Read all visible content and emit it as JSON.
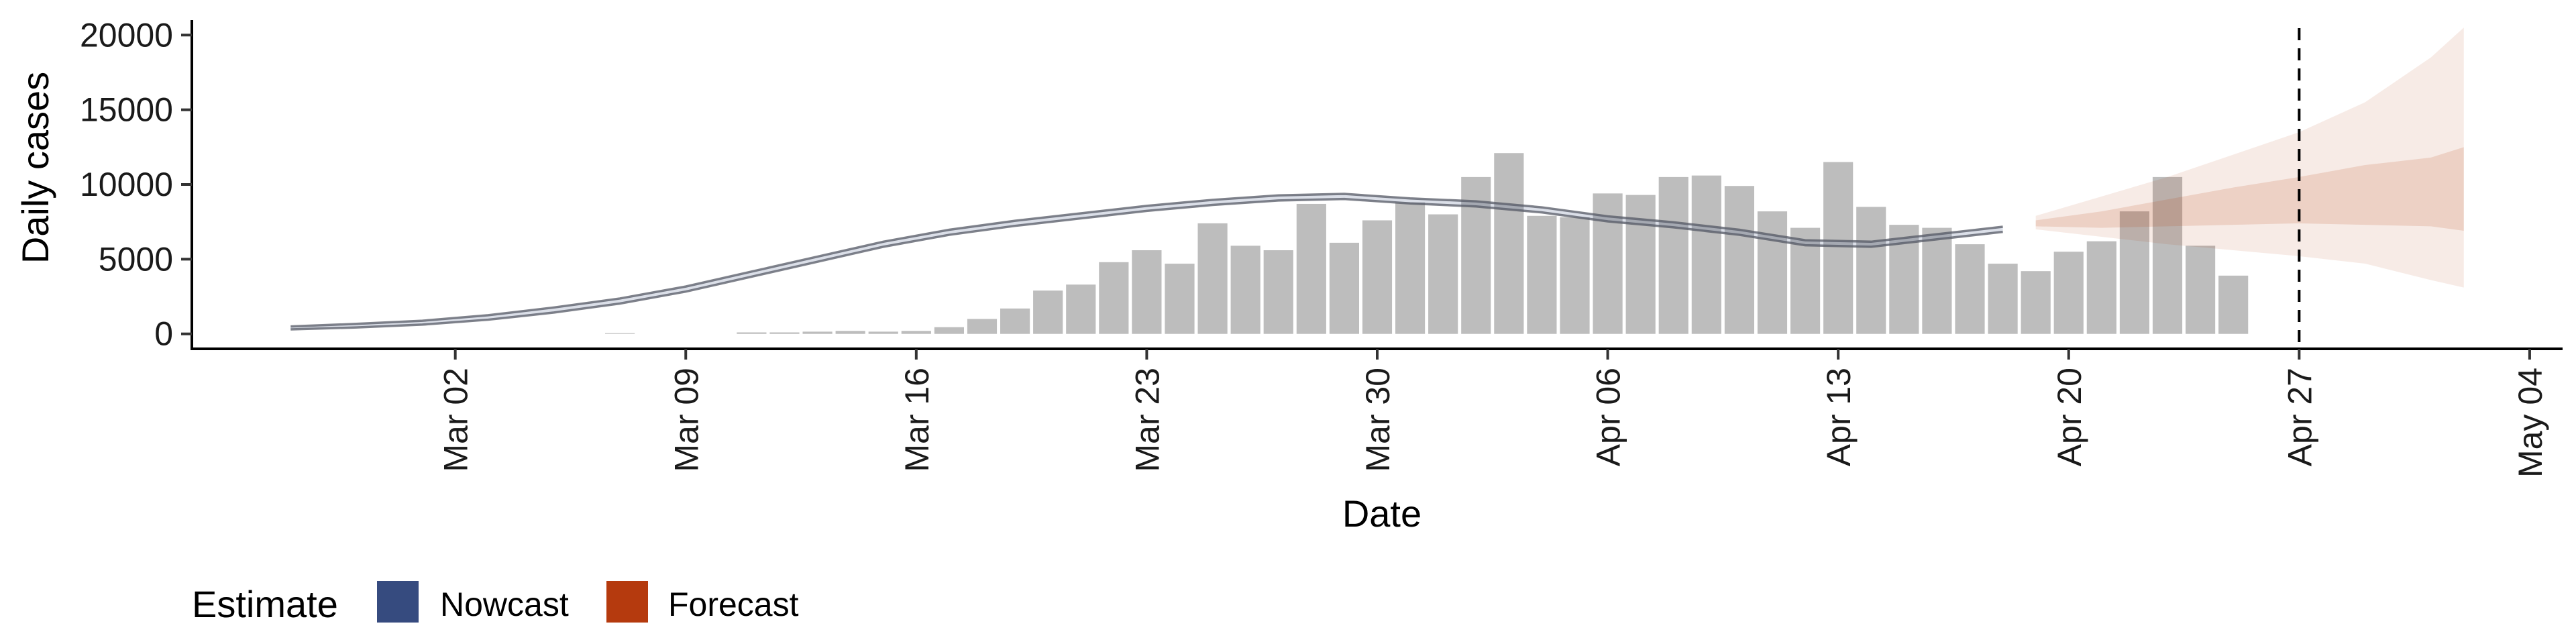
{
  "chart_data": {
    "type": "bar",
    "xlabel": "Date",
    "ylabel": "Daily cases",
    "ylim": [
      -1000,
      21000
    ],
    "y_ticks": [
      0,
      5000,
      10000,
      15000,
      20000
    ],
    "y_tick_labels": [
      "0",
      "5000",
      "10000",
      "15000",
      "20000"
    ],
    "x_ticks": [
      "2020-03-02",
      "2020-03-09",
      "2020-03-16",
      "2020-03-23",
      "2020-03-30",
      "2020-04-06",
      "2020-04-13",
      "2020-04-20",
      "2020-04-27",
      "2020-05-04"
    ],
    "x_tick_labels": [
      "Mar 02",
      "Mar 09",
      "Mar 16",
      "Mar 23",
      "Mar 30",
      "Apr 06",
      "Apr 13",
      "Apr 20",
      "Apr 27",
      "May 04"
    ],
    "xlim": [
      "2020-02-23",
      "2020-05-05"
    ],
    "vline_date": "2020-04-27",
    "bars": {
      "dates": [
        "2020-03-06",
        "2020-03-07",
        "2020-03-08",
        "2020-03-09",
        "2020-03-10",
        "2020-03-11",
        "2020-03-12",
        "2020-03-13",
        "2020-03-14",
        "2020-03-15",
        "2020-03-16",
        "2020-03-17",
        "2020-03-18",
        "2020-03-19",
        "2020-03-20",
        "2020-03-21",
        "2020-03-22",
        "2020-03-23",
        "2020-03-24",
        "2020-03-25",
        "2020-03-26",
        "2020-03-27",
        "2020-03-28",
        "2020-03-29",
        "2020-03-30",
        "2020-03-31",
        "2020-04-01",
        "2020-04-02",
        "2020-04-03",
        "2020-04-04",
        "2020-04-05",
        "2020-04-06",
        "2020-04-07",
        "2020-04-08",
        "2020-04-09",
        "2020-04-10",
        "2020-04-11",
        "2020-04-12",
        "2020-04-13",
        "2020-04-14",
        "2020-04-15",
        "2020-04-16",
        "2020-04-17",
        "2020-04-18",
        "2020-04-19",
        "2020-04-20",
        "2020-04-21",
        "2020-04-22",
        "2020-04-23",
        "2020-04-24",
        "2020-04-25",
        "2020-04-26",
        "2020-04-27"
      ],
      "values": [
        0,
        50,
        0,
        0,
        0,
        100,
        100,
        150,
        200,
        150,
        200,
        450,
        1000,
        1700,
        2900,
        3300,
        4800,
        5600,
        4700,
        7400,
        5900,
        5600,
        8700,
        6100,
        7600,
        8800,
        8000,
        10500,
        12100,
        7900,
        7800,
        9400,
        9300,
        10500,
        10600,
        9900,
        8200,
        7100,
        11500,
        8500,
        7300,
        7100,
        6000,
        4700,
        4200,
        5500,
        6200,
        8200,
        10500,
        5900,
        3900,
        0,
        0
      ]
    },
    "series": [
      {
        "name": "Nowcast",
        "color": "#364B7F",
        "dates": [
          "2020-02-26",
          "2020-02-28",
          "2020-03-01",
          "2020-03-03",
          "2020-03-05",
          "2020-03-07",
          "2020-03-09",
          "2020-03-11",
          "2020-03-13",
          "2020-03-15",
          "2020-03-17",
          "2020-03-19",
          "2020-03-21",
          "2020-03-23",
          "2020-03-25",
          "2020-03-27",
          "2020-03-29",
          "2020-03-31",
          "2020-04-02",
          "2020-04-04",
          "2020-04-06",
          "2020-04-08",
          "2020-04-10",
          "2020-04-12",
          "2020-04-14",
          "2020-04-16",
          "2020-04-18"
        ],
        "median": [
          400,
          550,
          750,
          1100,
          1600,
          2200,
          3000,
          4000,
          5000,
          6000,
          6800,
          7400,
          7900,
          8400,
          8800,
          9100,
          9200,
          8900,
          8700,
          8300,
          7700,
          7300,
          6800,
          6100,
          6000,
          6500,
          7000
        ],
        "lower": [
          300,
          430,
          620,
          950,
          1430,
          2030,
          2830,
          3830,
          4830,
          5830,
          6630,
          7230,
          7730,
          8230,
          8630,
          8930,
          9030,
          8730,
          8530,
          8130,
          7530,
          7130,
          6630,
          5930,
          5830,
          6330,
          6830
        ],
        "upper": [
          500,
          670,
          880,
          1250,
          1770,
          2370,
          3170,
          4170,
          5170,
          6170,
          6970,
          7570,
          8070,
          8570,
          8970,
          9270,
          9370,
          9070,
          8870,
          8470,
          7870,
          7470,
          6970,
          6270,
          6170,
          6670,
          7170
        ]
      },
      {
        "name": "Forecast",
        "color": "#B53A0E",
        "dates": [
          "2020-04-19",
          "2020-04-21",
          "2020-04-23",
          "2020-04-25",
          "2020-04-27",
          "2020-04-29",
          "2020-05-01",
          "2020-05-02"
        ],
        "outer_lower": [
          7000,
          6500,
          6000,
          5600,
          5200,
          4700,
          3600,
          3100
        ],
        "inner_lower": [
          7200,
          7100,
          7200,
          7300,
          7400,
          7300,
          7200,
          6900
        ],
        "inner_upper": [
          7600,
          8200,
          9000,
          9800,
          10500,
          11300,
          11800,
          12500
        ],
        "outer_upper": [
          7900,
          9200,
          10500,
          12000,
          13500,
          15500,
          18500,
          20500
        ]
      }
    ],
    "legend": {
      "title": "Estimate",
      "entries": [
        {
          "label": "Nowcast",
          "color": "#364B7F"
        },
        {
          "label": "Forecast",
          "color": "#B53A0E"
        }
      ],
      "position": "bottom"
    },
    "colors": {
      "bar": "#BDBDBD",
      "nowcast_ribbon": "#364B7F",
      "forecast_ribbon": "#B53A0E"
    }
  }
}
